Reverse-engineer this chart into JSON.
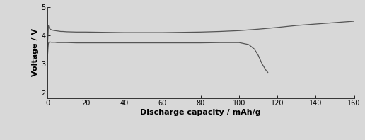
{
  "xlabel": "Discharge capacity / mAh/g",
  "ylabel": "Voltage / V",
  "xlim": [
    0,
    160
  ],
  "ylim": [
    1.8,
    5.0
  ],
  "yticks": [
    2,
    3,
    4,
    5
  ],
  "xticks": [
    0,
    20,
    40,
    60,
    80,
    100,
    120,
    140,
    160
  ],
  "line_color": "#555555",
  "background_color": "#d8d8d8",
  "plot_bg_color": "#d8d8d8",
  "charge_curve": {
    "x": [
      0,
      0.3,
      0.5,
      0.8,
      1.0,
      1.5,
      2.0,
      2.5,
      3.0,
      4.0,
      5.0,
      6.0,
      7.0,
      8.0,
      10,
      15,
      20,
      30,
      40,
      50,
      60,
      70,
      80,
      90,
      100,
      110,
      120,
      130,
      140,
      150,
      160
    ],
    "y": [
      3.55,
      4.0,
      4.35,
      4.28,
      4.25,
      4.22,
      4.2,
      4.19,
      4.18,
      4.17,
      4.16,
      4.15,
      4.14,
      4.14,
      4.13,
      4.12,
      4.12,
      4.11,
      4.1,
      4.1,
      4.1,
      4.11,
      4.12,
      4.14,
      4.17,
      4.22,
      4.28,
      4.35,
      4.4,
      4.45,
      4.5
    ]
  },
  "discharge_curve": {
    "x": [
      0,
      0.3,
      0.5,
      0.8,
      1.0,
      1.5,
      2.0,
      2.5,
      3.0,
      4.0,
      5.0,
      6.0,
      7.0,
      8.0,
      10,
      15,
      20,
      30,
      40,
      50,
      60,
      70,
      80,
      90,
      100,
      105,
      108,
      110,
      112,
      114,
      115
    ],
    "y": [
      3.2,
      3.55,
      3.72,
      3.76,
      3.77,
      3.77,
      3.76,
      3.76,
      3.76,
      3.76,
      3.75,
      3.75,
      3.75,
      3.75,
      3.75,
      3.74,
      3.74,
      3.74,
      3.74,
      3.74,
      3.74,
      3.74,
      3.74,
      3.75,
      3.75,
      3.68,
      3.52,
      3.3,
      3.0,
      2.78,
      2.7
    ]
  }
}
